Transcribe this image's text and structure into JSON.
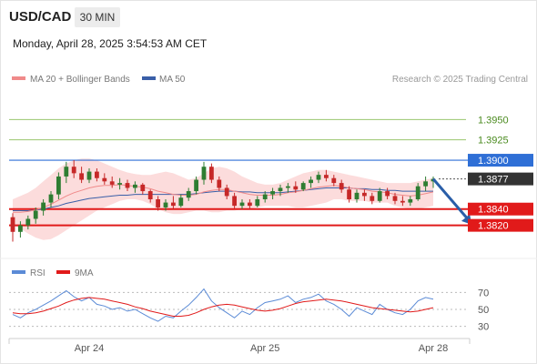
{
  "header": {
    "symbol": "USD/CAD",
    "timeframe": "30 MIN",
    "datetime": "Monday, April 28, 2025 3:54:53 AM CET"
  },
  "colors": {
    "ma20": "#f08a8a",
    "ma50": "#3a5fa8",
    "bands_fill": "#fbd6d6",
    "support": "#e11a1a",
    "resistance_level_line": "#9ac66e",
    "pivot": "#2f6fd6",
    "current": "#333333",
    "candle_up": "#2e7d32",
    "candle_down": "#c62828",
    "arrow": "#2a5ea8",
    "rsi": "#5b8bd6",
    "rsi_ma": "#e11a1a"
  },
  "chart_data": [
    {
      "type": "candlestick",
      "legend": {
        "ma20": "MA 20 + Bollinger Bands",
        "ma50": "MA 50"
      },
      "watermark": "Research © 2025 Trading Central",
      "ylim": [
        1.3795,
        1.3985
      ],
      "x_ticks": [
        {
          "label": "Apr 24",
          "index": 10
        },
        {
          "label": "Apr 25",
          "index": 33
        },
        {
          "label": "Apr 28",
          "index": 55
        }
      ],
      "levels": [
        {
          "value": 1.395,
          "label": "1.3950",
          "kind": "resistance"
        },
        {
          "value": 1.3925,
          "label": "1.3925",
          "kind": "resistance"
        },
        {
          "value": 1.39,
          "label": "1.3900",
          "kind": "pivot"
        },
        {
          "value": 1.3877,
          "label": "1.3877",
          "kind": "current"
        },
        {
          "value": 1.384,
          "label": "1.3840",
          "kind": "support"
        },
        {
          "value": 1.382,
          "label": "1.3820",
          "kind": "support"
        }
      ],
      "candles": [
        [
          1.383,
          1.3835,
          1.38,
          1.3812
        ],
        [
          1.3812,
          1.3825,
          1.3805,
          1.382
        ],
        [
          1.382,
          1.3832,
          1.3815,
          1.3828
        ],
        [
          1.3828,
          1.3842,
          1.3822,
          1.3838
        ],
        [
          1.3838,
          1.3852,
          1.3832,
          1.3848
        ],
        [
          1.3848,
          1.3862,
          1.3842,
          1.3858
        ],
        [
          1.3858,
          1.3885,
          1.3852,
          1.388
        ],
        [
          1.388,
          1.3898,
          1.3872,
          1.3892
        ],
        [
          1.3892,
          1.39,
          1.3878,
          1.3884
        ],
        [
          1.3884,
          1.3892,
          1.3872,
          1.3876
        ],
        [
          1.3876,
          1.389,
          1.3872,
          1.3886
        ],
        [
          1.3886,
          1.389,
          1.3874,
          1.3878
        ],
        [
          1.3878,
          1.3884,
          1.387,
          1.3874
        ],
        [
          1.3874,
          1.388,
          1.3866,
          1.387
        ],
        [
          1.387,
          1.3878,
          1.3864,
          1.3872
        ],
        [
          1.3872,
          1.3876,
          1.3862,
          1.3866
        ],
        [
          1.3866,
          1.3874,
          1.386,
          1.387
        ],
        [
          1.387,
          1.3872,
          1.3858,
          1.3862
        ],
        [
          1.3862,
          1.3864,
          1.3848,
          1.3852
        ],
        [
          1.3852,
          1.3856,
          1.3838,
          1.3842
        ],
        [
          1.3842,
          1.3852,
          1.3838,
          1.3848
        ],
        [
          1.3848,
          1.3856,
          1.384,
          1.3844
        ],
        [
          1.3844,
          1.3858,
          1.3842,
          1.3854
        ],
        [
          1.3854,
          1.3866,
          1.385,
          1.3862
        ],
        [
          1.3862,
          1.388,
          1.3858,
          1.3876
        ],
        [
          1.3876,
          1.3898,
          1.387,
          1.3892
        ],
        [
          1.3892,
          1.3896,
          1.3872,
          1.3876
        ],
        [
          1.3876,
          1.388,
          1.3862,
          1.3866
        ],
        [
          1.3866,
          1.387,
          1.3852,
          1.3856
        ],
        [
          1.3856,
          1.386,
          1.384,
          1.3844
        ],
        [
          1.3844,
          1.3852,
          1.384,
          1.3848
        ],
        [
          1.3848,
          1.3852,
          1.384,
          1.3844
        ],
        [
          1.3844,
          1.3856,
          1.3842,
          1.3852
        ],
        [
          1.3852,
          1.3862,
          1.3848,
          1.3858
        ],
        [
          1.3858,
          1.3866,
          1.3852,
          1.3862
        ],
        [
          1.3862,
          1.387,
          1.3856,
          1.3866
        ],
        [
          1.3866,
          1.3872,
          1.386,
          1.3868
        ],
        [
          1.3868,
          1.3874,
          1.386,
          1.3864
        ],
        [
          1.3864,
          1.3874,
          1.3862,
          1.3872
        ],
        [
          1.3872,
          1.388,
          1.3866,
          1.3876
        ],
        [
          1.3876,
          1.3886,
          1.3872,
          1.3882
        ],
        [
          1.3882,
          1.3888,
          1.3874,
          1.3878
        ],
        [
          1.3878,
          1.3882,
          1.3868,
          1.3872
        ],
        [
          1.3872,
          1.3876,
          1.386,
          1.3864
        ],
        [
          1.3864,
          1.3868,
          1.3848,
          1.3852
        ],
        [
          1.3852,
          1.3864,
          1.3848,
          1.386
        ],
        [
          1.386,
          1.3864,
          1.385,
          1.3856
        ],
        [
          1.3856,
          1.386,
          1.3846,
          1.385
        ],
        [
          1.385,
          1.3866,
          1.3848,
          1.3862
        ],
        [
          1.3862,
          1.3866,
          1.3852,
          1.3856
        ],
        [
          1.3856,
          1.386,
          1.3846,
          1.385
        ],
        [
          1.385,
          1.3856,
          1.3844,
          1.3848
        ],
        [
          1.3848,
          1.3856,
          1.3844,
          1.3852
        ],
        [
          1.3852,
          1.3872,
          1.385,
          1.3868
        ],
        [
          1.3868,
          1.388,
          1.3862,
          1.3874
        ],
        [
          1.3874,
          1.388,
          1.3866,
          1.3877
        ]
      ],
      "ma20": [
        1.3836,
        1.3836,
        1.3837,
        1.3839,
        1.3842,
        1.3846,
        1.3851,
        1.3856,
        1.386,
        1.3863,
        1.3866,
        1.3868,
        1.3869,
        1.3869,
        1.387,
        1.3869,
        1.3868,
        1.3867,
        1.3865,
        1.3862,
        1.386,
        1.3858,
        1.3857,
        1.3857,
        1.3858,
        1.3861,
        1.3863,
        1.3864,
        1.3864,
        1.3862,
        1.386,
        1.3858,
        1.3857,
        1.3857,
        1.3857,
        1.3858,
        1.386,
        1.3861,
        1.3863,
        1.3865,
        1.3867,
        1.3868,
        1.3869,
        1.3868,
        1.3866,
        1.3865,
        1.3864,
        1.3862,
        1.3861,
        1.386,
        1.3858,
        1.3857,
        1.3856,
        1.3857,
        1.3859,
        1.3861
      ],
      "upper_band": [
        1.3852,
        1.3856,
        1.386,
        1.3866,
        1.3874,
        1.3882,
        1.389,
        1.3896,
        1.39,
        1.3902,
        1.3902,
        1.39,
        1.3896,
        1.3892,
        1.3888,
        1.3885,
        1.3883,
        1.3882,
        1.3882,
        1.3884,
        1.3886,
        1.3884,
        1.388,
        1.3876,
        1.3878,
        1.3884,
        1.389,
        1.3892,
        1.389,
        1.3886,
        1.388,
        1.3876,
        1.3872,
        1.387,
        1.387,
        1.3872,
        1.3876,
        1.388,
        1.3884,
        1.3886,
        1.3888,
        1.3888,
        1.3886,
        1.3884,
        1.3882,
        1.388,
        1.3878,
        1.3876,
        1.3874,
        1.3872,
        1.3872,
        1.3872,
        1.3872,
        1.3874,
        1.3876,
        1.3878
      ],
      "lower_band": [
        1.382,
        1.3816,
        1.381,
        1.3805,
        1.3802,
        1.3803,
        1.3808,
        1.3814,
        1.382,
        1.3826,
        1.3832,
        1.3838,
        1.3842,
        1.3846,
        1.385,
        1.3852,
        1.3852,
        1.385,
        1.3846,
        1.384,
        1.3836,
        1.3834,
        1.3834,
        1.3836,
        1.3838,
        1.3838,
        1.3836,
        1.3836,
        1.3838,
        1.3838,
        1.384,
        1.384,
        1.3842,
        1.3844,
        1.3844,
        1.3844,
        1.3844,
        1.3842,
        1.3842,
        1.3844,
        1.3846,
        1.3848,
        1.3852,
        1.3852,
        1.385,
        1.385,
        1.385,
        1.3848,
        1.3848,
        1.3848,
        1.3844,
        1.3842,
        1.384,
        1.384,
        1.3842,
        1.3844
      ],
      "ma50": [
        1.3838,
        1.3838,
        1.3838,
        1.3839,
        1.384,
        1.3842,
        1.3844,
        1.3847,
        1.3849,
        1.3851,
        1.3853,
        1.3854,
        1.3855,
        1.3856,
        1.3857,
        1.3857,
        1.3858,
        1.3858,
        1.3858,
        1.3858,
        1.3858,
        1.3858,
        1.3858,
        1.3858,
        1.3859,
        1.386,
        1.3861,
        1.3862,
        1.3862,
        1.3862,
        1.3861,
        1.3861,
        1.386,
        1.386,
        1.386,
        1.386,
        1.3861,
        1.3862,
        1.3863,
        1.3864,
        1.3865,
        1.3866,
        1.3866,
        1.3866,
        1.3866,
        1.3865,
        1.3865,
        1.3864,
        1.3864,
        1.3863,
        1.3863,
        1.3862,
        1.3862,
        1.3862,
        1.3862,
        1.3862
      ],
      "arrow": {
        "from": [
          55,
          1.3877
        ],
        "to": [
          60,
          1.3821
        ]
      }
    },
    {
      "type": "line",
      "legend": {
        "rsi": "RSI",
        "ma": "9MA"
      },
      "ylim": [
        20,
        80
      ],
      "y_ticks": [
        70,
        50,
        30
      ],
      "series": [
        {
          "name": "RSI",
          "values": [
            44,
            40,
            46,
            50,
            55,
            60,
            66,
            72,
            65,
            60,
            64,
            56,
            54,
            50,
            52,
            48,
            50,
            45,
            40,
            36,
            42,
            40,
            48,
            55,
            64,
            74,
            60,
            52,
            46,
            40,
            48,
            44,
            52,
            58,
            60,
            62,
            66,
            58,
            62,
            64,
            68,
            60,
            56,
            50,
            42,
            52,
            48,
            44,
            56,
            50,
            46,
            44,
            50,
            60,
            64,
            62
          ]
        },
        {
          "name": "9MA",
          "values": [
            46,
            45,
            45,
            46,
            48,
            51,
            54,
            58,
            61,
            63,
            64,
            63,
            62,
            60,
            58,
            56,
            53,
            51,
            48,
            46,
            44,
            42,
            42,
            43,
            46,
            50,
            53,
            55,
            56,
            55,
            53,
            51,
            49,
            48,
            49,
            51,
            54,
            57,
            59,
            60,
            61,
            62,
            61,
            60,
            58,
            56,
            54,
            52,
            51,
            50,
            49,
            48,
            47,
            48,
            50,
            52
          ]
        }
      ]
    }
  ],
  "x_axis_labels": [
    "Apr 24",
    "Apr 25",
    "Apr 28"
  ]
}
